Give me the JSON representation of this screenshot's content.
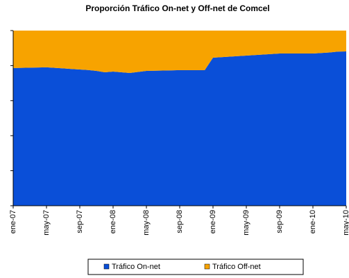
{
  "chart_data": {
    "type": "stacked-area",
    "title": "Proporción Tráfico On-net y Off-net de Comcel",
    "categories": [
      "ene-07",
      null,
      null,
      null,
      "may-07",
      null,
      null,
      null,
      "sep-07",
      null,
      null,
      null,
      "ene-08",
      null,
      null,
      null,
      "may-08",
      null,
      null,
      null,
      "sep-08",
      null,
      null,
      null,
      "ene-09",
      null,
      null,
      null,
      "may-09",
      null,
      null,
      null,
      "sep-09",
      null,
      null,
      null,
      "ene-10",
      null,
      null,
      null,
      "may-10"
    ],
    "series": [
      {
        "name": "Tráfico On-net",
        "color": "#0a4fd8",
        "values": [
          78.6,
          78.7,
          78.8,
          78.9,
          79.0,
          78.7,
          78.4,
          78.1,
          77.8,
          77.5,
          77.0,
          76.2,
          76.6,
          76.2,
          75.8,
          76.4,
          77.0,
          77.1,
          77.2,
          77.3,
          77.4,
          77.4,
          77.4,
          77.4,
          84.5,
          84.8,
          85.1,
          85.4,
          85.7,
          86.0,
          86.3,
          86.6,
          86.9,
          86.9,
          86.9,
          86.9,
          86.9,
          87.2,
          87.5,
          88.0,
          88.1
        ]
      },
      {
        "name": "Tráfico Off-net",
        "color": "#f7a300",
        "values": [
          21.4,
          21.3,
          21.2,
          21.1,
          21.0,
          21.3,
          21.6,
          21.9,
          22.2,
          22.5,
          23.0,
          23.8,
          23.4,
          23.8,
          24.2,
          23.6,
          23.0,
          22.9,
          22.8,
          22.7,
          22.6,
          22.6,
          22.6,
          22.6,
          15.5,
          15.2,
          14.9,
          14.6,
          14.3,
          14.0,
          13.7,
          13.4,
          13.1,
          13.1,
          13.1,
          13.1,
          13.1,
          12.8,
          12.5,
          12.0,
          11.9
        ]
      }
    ],
    "ylim": [
      0,
      100
    ],
    "yticks": [
      0,
      20,
      40,
      60,
      80,
      100
    ]
  }
}
